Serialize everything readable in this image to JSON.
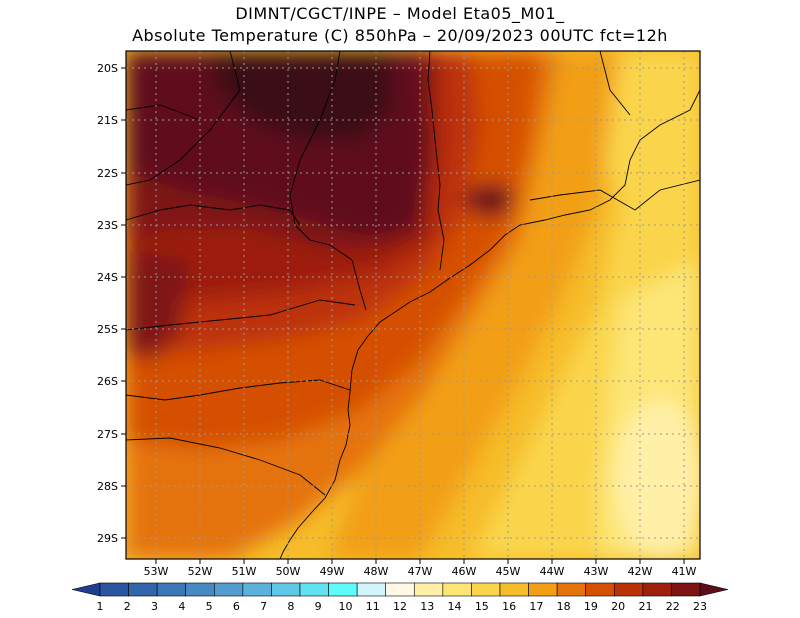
{
  "title": {
    "line1": "DIMNT/CGCT/INPE –  Model Eta05_M01_",
    "line2": "Absolute Temperature (C) 850hPa –  20/09/2023 00UTC fct=12h"
  },
  "axes": {
    "lat_labels": [
      "20S",
      "21S",
      "22S",
      "23S",
      "24S",
      "25S",
      "26S",
      "27S",
      "28S",
      "29S"
    ],
    "lon_labels": [
      "53W",
      "52W",
      "51W",
      "50W",
      "49W",
      "48W",
      "47W",
      "46W",
      "45W",
      "44W",
      "43W",
      "42W",
      "41W"
    ]
  },
  "colorbar": {
    "labels": [
      "1",
      "2",
      "3",
      "4",
      "5",
      "6",
      "7",
      "8",
      "9",
      "10",
      "11",
      "12",
      "13",
      "14",
      "15",
      "16",
      "17",
      "18",
      "19",
      "20",
      "21",
      "22",
      "23"
    ],
    "colors": [
      "#1f3e8f",
      "#2a55a0",
      "#3266ac",
      "#3b78b8",
      "#4789c3",
      "#529ccf",
      "#5ab1da",
      "#5fc8e6",
      "#5fe3f2",
      "#5efbfb",
      "#d2f5fb",
      "#fff8e6",
      "#fff0a8",
      "#fde676",
      "#fad54b",
      "#f6bc2a",
      "#f29f14",
      "#e5730b",
      "#d55004",
      "#bc3207",
      "#9e1f0c",
      "#7f1513",
      "#5e0e1a"
    ]
  },
  "map": {
    "land_outline": "coastline and state boundaries (south-east Brazil)"
  }
}
